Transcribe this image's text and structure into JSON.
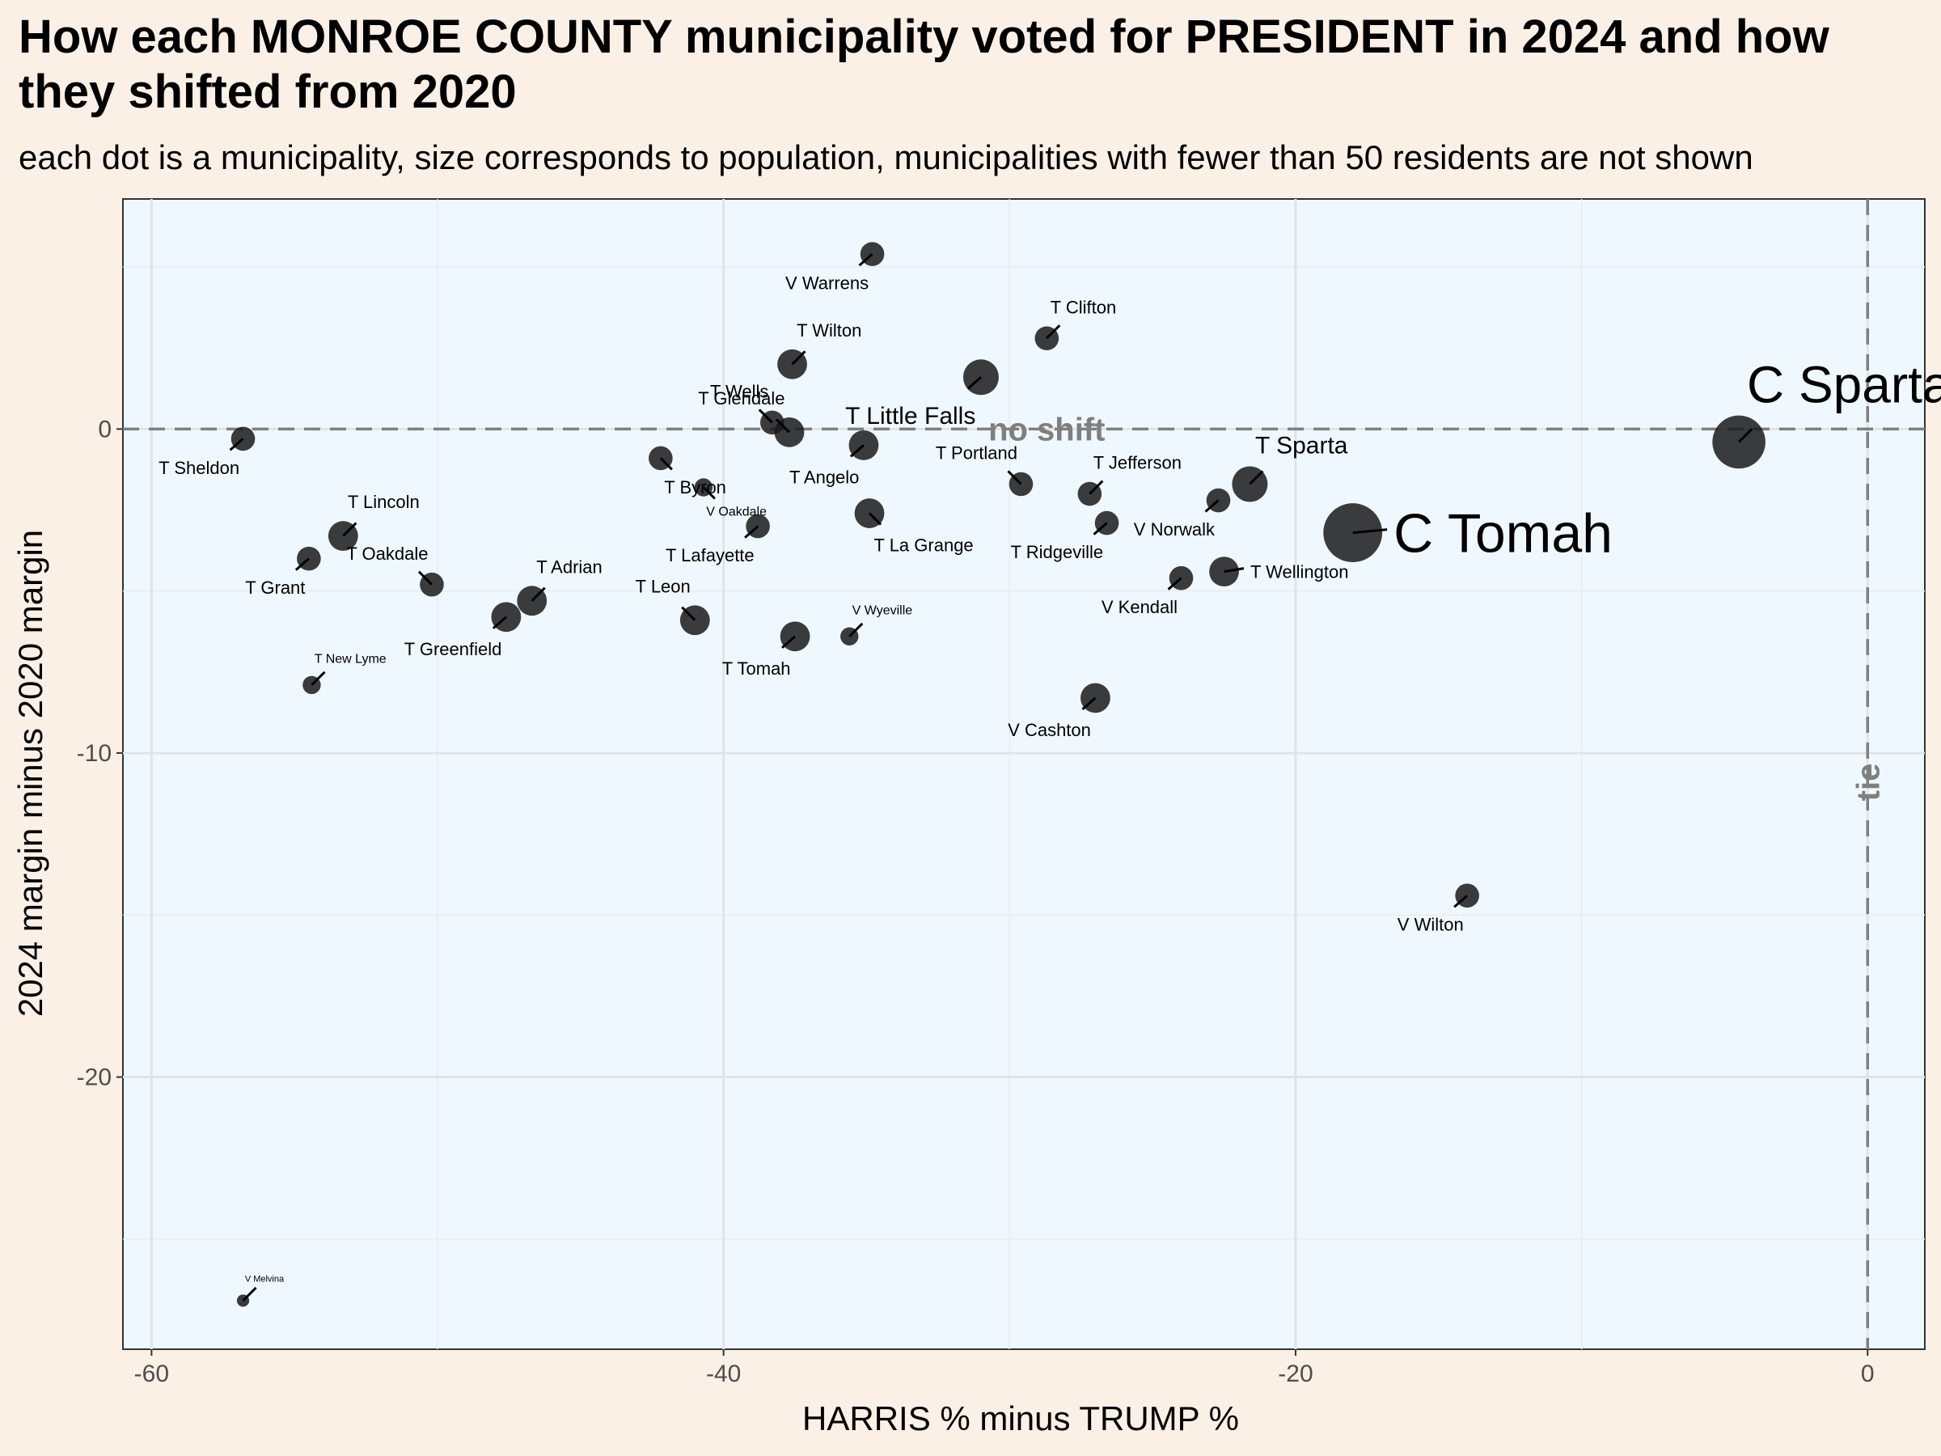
{
  "chart_data": {
    "type": "scatter",
    "title": "How each MONROE COUNTY municipality voted for PRESIDENT in 2024 and how they shifted from 2020",
    "subtitle": "each dot is a municipality, size corresponds to population, municipalities with fewer than 50 residents are not shown",
    "xlabel": "HARRIS % minus TRUMP %",
    "ylabel": "2024 margin minus 2020 margin",
    "xlim": [
      -61,
      2
    ],
    "ylim": [
      -28.4,
      7.1
    ],
    "xticks": [
      -60,
      -40,
      -20,
      0
    ],
    "yticks": [
      -20,
      -10,
      0
    ],
    "x_tick_labels": [
      "-60",
      "-40",
      "-20",
      "0"
    ],
    "y_tick_labels": [
      "-20",
      "-10",
      "0"
    ],
    "reference_lines": {
      "horizontal": {
        "y": 0,
        "label": "no shift"
      },
      "vertical": {
        "x": 0,
        "label": "tie"
      }
    },
    "colors": {
      "background": "#faf0e6",
      "panel": "#f0f8ff",
      "point": "#1a1a1a",
      "reference_line": "#7f7f7f"
    },
    "points": [
      {
        "name": "V Warrens",
        "x": -34.8,
        "y": 5.4,
        "size": 3,
        "label_pos": "below-left"
      },
      {
        "name": "T Clifton",
        "x": -28.7,
        "y": 2.8,
        "size": 3,
        "label_pos": "above-right"
      },
      {
        "name": "T Wilton",
        "x": -37.6,
        "y": 2.0,
        "size": 4,
        "label_pos": "above-right"
      },
      {
        "name": "T Little Falls",
        "x": -31.0,
        "y": 1.6,
        "size": 5,
        "label_pos": "below-left"
      },
      {
        "name": "T Wells",
        "x": -38.3,
        "y": 0.2,
        "size": 3,
        "label_pos": "above-left"
      },
      {
        "name": "T Glendale",
        "x": -37.7,
        "y": -0.1,
        "size": 4,
        "label_pos": "above-left"
      },
      {
        "name": "T Sheldon",
        "x": -56.8,
        "y": -0.3,
        "size": 3,
        "label_pos": "below-left"
      },
      {
        "name": "T Angelo",
        "x": -35.1,
        "y": -0.5,
        "size": 4,
        "label_pos": "below-left"
      },
      {
        "name": "T Byron",
        "x": -42.2,
        "y": -0.9,
        "size": 3,
        "label_pos": "below-right"
      },
      {
        "name": "C Sparta",
        "x": -4.5,
        "y": -0.4,
        "size": 8,
        "label_pos": "above-right"
      },
      {
        "name": "T Portland",
        "x": -29.6,
        "y": -1.7,
        "size": 3,
        "label_pos": "above-left"
      },
      {
        "name": "V Oakdale",
        "x": -40.7,
        "y": -1.8,
        "size": 2,
        "label_pos": "below-right"
      },
      {
        "name": "T Sparta",
        "x": -21.6,
        "y": -1.7,
        "size": 5,
        "label_pos": "above-right"
      },
      {
        "name": "T Jefferson",
        "x": -27.2,
        "y": -2.0,
        "size": 3,
        "label_pos": "above-right"
      },
      {
        "name": "V Norwalk",
        "x": -22.7,
        "y": -2.2,
        "size": 3,
        "label_pos": "below-left"
      },
      {
        "name": "T La Grange",
        "x": -34.9,
        "y": -2.6,
        "size": 4,
        "label_pos": "below-right"
      },
      {
        "name": "T Ridgeville",
        "x": -26.6,
        "y": -2.9,
        "size": 3,
        "label_pos": "below-left"
      },
      {
        "name": "T Lafayette",
        "x": -38.8,
        "y": -3.0,
        "size": 3,
        "label_pos": "below-left"
      },
      {
        "name": "C Tomah",
        "x": -18.0,
        "y": -3.2,
        "size": 9,
        "label_pos": "right"
      },
      {
        "name": "T Lincoln",
        "x": -53.3,
        "y": -3.3,
        "size": 4,
        "label_pos": "above-right"
      },
      {
        "name": "T Grant",
        "x": -54.5,
        "y": -4.0,
        "size": 3,
        "label_pos": "below-left"
      },
      {
        "name": "T Wellington",
        "x": -22.5,
        "y": -4.4,
        "size": 4,
        "label_pos": "right"
      },
      {
        "name": "V Kendall",
        "x": -24.0,
        "y": -4.6,
        "size": 3,
        "label_pos": "below-left"
      },
      {
        "name": "T Oakdale",
        "x": -50.2,
        "y": -4.8,
        "size": 3,
        "label_pos": "above-left"
      },
      {
        "name": "T Adrian",
        "x": -46.7,
        "y": -5.3,
        "size": 4,
        "label_pos": "above-right"
      },
      {
        "name": "T Greenfield",
        "x": -47.6,
        "y": -5.8,
        "size": 4,
        "label_pos": "below-left"
      },
      {
        "name": "T Leon",
        "x": -41.0,
        "y": -5.9,
        "size": 4,
        "label_pos": "above-left"
      },
      {
        "name": "T Tomah",
        "x": -37.5,
        "y": -6.4,
        "size": 4,
        "label_pos": "below-left"
      },
      {
        "name": "V Wyeville",
        "x": -35.6,
        "y": -6.4,
        "size": 2,
        "label_pos": "above-right"
      },
      {
        "name": "T New Lyme",
        "x": -54.4,
        "y": -7.9,
        "size": 2,
        "label_pos": "above-right"
      },
      {
        "name": "V Cashton",
        "x": -27.0,
        "y": -8.3,
        "size": 4,
        "label_pos": "below-left"
      },
      {
        "name": "V Wilton",
        "x": -14.0,
        "y": -14.4,
        "size": 3,
        "label_pos": "below-left"
      },
      {
        "name": "V Melvina",
        "x": -56.8,
        "y": -26.9,
        "size": 1,
        "label_pos": "above-right"
      }
    ]
  }
}
